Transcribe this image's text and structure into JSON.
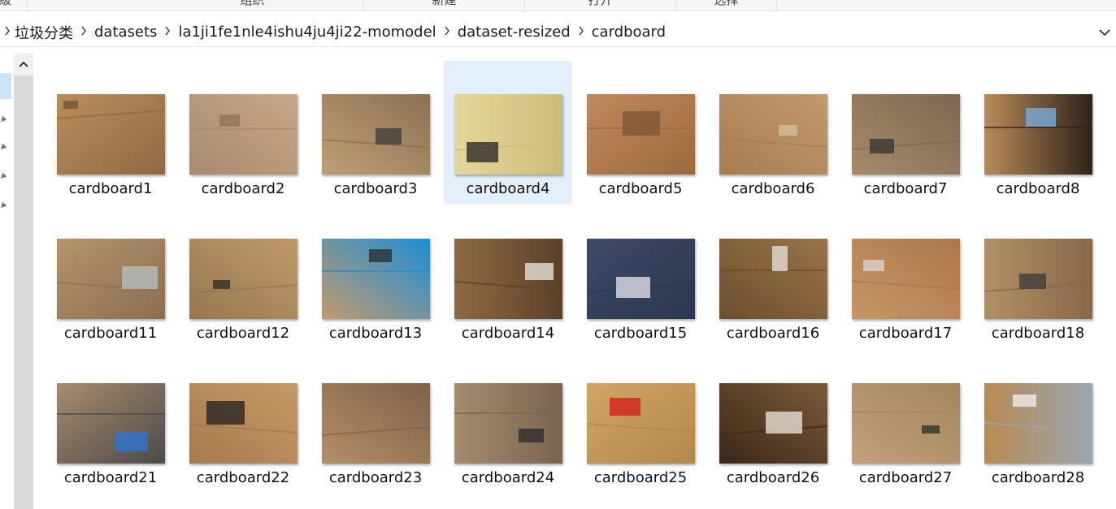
{
  "ribbon": {
    "groups": [
      "级",
      "组织",
      "新建",
      "打开",
      "选择"
    ]
  },
  "address": {
    "crumbs": [
      "垃圾分类",
      "datasets",
      "la1ji1fe1nle4ishu4ju4ji22-momodel",
      "dataset-resized",
      "cardboard"
    ]
  },
  "files": [
    {
      "name": "cardboard1",
      "base": "#b98e5e",
      "dark": "#8f6a43",
      "accent": "#6d5233"
    },
    {
      "name": "cardboard2",
      "base": "#c7a786",
      "dark": "#a88c70",
      "accent": "#8b735c"
    },
    {
      "name": "cardboard3",
      "base": "#bf9f76",
      "dark": "#8c7051",
      "accent": "#3b3b3b"
    },
    {
      "name": "cardboard4",
      "base": "#e6d69a",
      "dark": "#cdbb7a",
      "accent": "#222222"
    },
    {
      "name": "cardboard5",
      "base": "#c0895a",
      "dark": "#9c6a40",
      "accent": "#7d5433"
    },
    {
      "name": "cardboard6",
      "base": "#c39a6d",
      "dark": "#a67c52",
      "accent": "#cfc39a"
    },
    {
      "name": "cardboard7",
      "base": "#a68a6c",
      "dark": "#7e6850",
      "accent": "#333333"
    },
    {
      "name": "cardboard8",
      "base": "#b98a58",
      "dark": "#2e231a",
      "accent": "#7ab0e0"
    },
    {
      "name": "cardboard11",
      "base": "#b5936c",
      "dark": "#8a6f52",
      "accent": "#b8c0c4"
    },
    {
      "name": "cardboard12",
      "base": "#c09a6c",
      "dark": "#96774f",
      "accent": "#2b2b2b"
    },
    {
      "name": "cardboard13",
      "base": "#c29970",
      "dark": "#1d8ed6",
      "accent": "#2a2a2a"
    },
    {
      "name": "cardboard14",
      "base": "#8e6a44",
      "dark": "#5b4129",
      "accent": "#efece6"
    },
    {
      "name": "cardboard15",
      "base": "#3e4b66",
      "dark": "#2c3650",
      "accent": "#e8e8ec"
    },
    {
      "name": "cardboard16",
      "base": "#9a7449",
      "dark": "#6b4e2f",
      "accent": "#e9e6e0"
    },
    {
      "name": "cardboard17",
      "base": "#c89566",
      "dark": "#a9784b",
      "accent": "#dcd7cf"
    },
    {
      "name": "cardboard18",
      "base": "#b28f66",
      "dark": "#86684a",
      "accent": "#3b3b3b"
    },
    {
      "name": "cardboard21",
      "base": "#a78c6e",
      "dark": "#4b4a4a",
      "accent": "#2f74d8"
    },
    {
      "name": "cardboard22",
      "base": "#c79a68",
      "dark": "#a57a4b",
      "accent": "#1f1f1f"
    },
    {
      "name": "cardboard23",
      "base": "#b38e69",
      "dark": "#7f6248",
      "accent": "#9b7a58"
    },
    {
      "name": "cardboard24",
      "base": "#a58a6f",
      "dark": "#7a654f",
      "accent": "#2a2a2a"
    },
    {
      "name": "cardboard25",
      "base": "#d1a566",
      "dark": "#b4874b",
      "accent": "#d01a1a"
    },
    {
      "name": "cardboard26",
      "base": "#7d5a37",
      "dark": "#3a281a",
      "accent": "#efeae0"
    },
    {
      "name": "cardboard27",
      "base": "#bfa17d",
      "dark": "#a3855f",
      "accent": "#2b2b2b"
    },
    {
      "name": "cardboard28",
      "base": "#b98a52",
      "dark": "#9aa6b2",
      "accent": "#f2f2f2"
    }
  ],
  "selected_file": "cardboard4",
  "colors": {
    "selection": "#e3f0fc",
    "nav_selected": "#cce4f7"
  },
  "icons": {
    "crumb_separator": "chevron-right-icon",
    "address_dropdown": "chevron-down-icon",
    "nav_scroll_up": "chevron-up-icon",
    "quick_access_pin": "pin-icon"
  }
}
